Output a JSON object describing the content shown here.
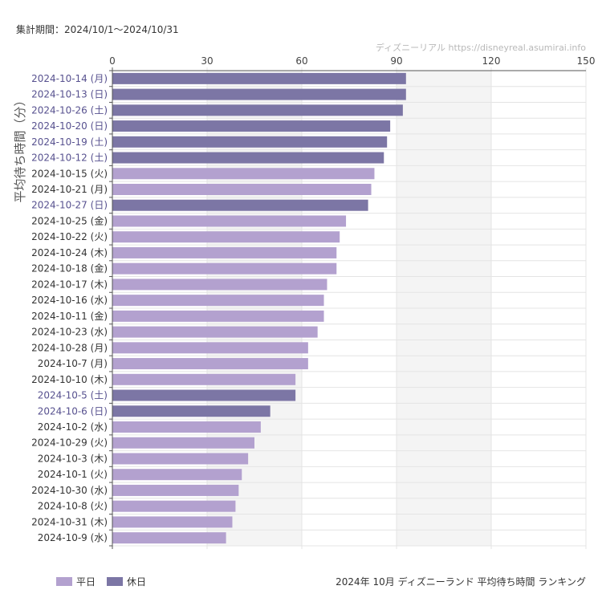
{
  "header": {
    "period": "集計期間：2024/10/1〜2024/10/31",
    "watermark": "ディズニーリアル https://disneyreal.asumirai.info"
  },
  "legend": {
    "position": "bottom-left",
    "items": [
      {
        "label": "平日",
        "color": "#b3a1cf"
      },
      {
        "label": "休日",
        "color": "#7c76a5"
      }
    ]
  },
  "colors": {
    "weekday_bar": "#b3a1cf",
    "holiday_bar": "#7c76a5",
    "weekday_label": "#333333",
    "holiday_label": "#57518f",
    "grid": "#e4e4e4",
    "band": "#f4f4f4",
    "axis": "#555555"
  },
  "chart_data": {
    "type": "bar",
    "orientation": "horizontal",
    "title": "2024年 10月 ディズニーランド 平均待ち時間 ランキング",
    "ylabel": "平均待ち時間（分）",
    "xlim": [
      0,
      150
    ],
    "xticks": [
      0,
      30,
      60,
      90,
      120,
      150
    ],
    "grid": true,
    "categories": [
      "2024-10-14 (月)",
      "2024-10-13 (日)",
      "2024-10-26 (土)",
      "2024-10-20 (日)",
      "2024-10-19 (土)",
      "2024-10-12 (土)",
      "2024-10-15 (火)",
      "2024-10-21 (月)",
      "2024-10-27 (日)",
      "2024-10-25 (金)",
      "2024-10-22 (火)",
      "2024-10-24 (木)",
      "2024-10-18 (金)",
      "2024-10-17 (木)",
      "2024-10-16 (水)",
      "2024-10-11 (金)",
      "2024-10-23 (水)",
      "2024-10-28 (月)",
      "2024-10-7 (月)",
      "2024-10-10 (木)",
      "2024-10-5 (土)",
      "2024-10-6 (日)",
      "2024-10-2 (水)",
      "2024-10-29 (火)",
      "2024-10-3 (木)",
      "2024-10-1 (火)",
      "2024-10-30 (水)",
      "2024-10-8 (火)",
      "2024-10-31 (木)",
      "2024-10-9 (水)"
    ],
    "values": [
      93,
      93,
      92,
      88,
      87,
      86,
      83,
      82,
      81,
      74,
      72,
      71,
      71,
      68,
      67,
      67,
      65,
      62,
      62,
      58,
      58,
      50,
      47,
      45,
      43,
      41,
      40,
      39,
      38,
      36
    ],
    "day_type": [
      "休日",
      "休日",
      "休日",
      "休日",
      "休日",
      "休日",
      "平日",
      "平日",
      "休日",
      "平日",
      "平日",
      "平日",
      "平日",
      "平日",
      "平日",
      "平日",
      "平日",
      "平日",
      "平日",
      "平日",
      "休日",
      "休日",
      "平日",
      "平日",
      "平日",
      "平日",
      "平日",
      "平日",
      "平日",
      "平日"
    ]
  }
}
